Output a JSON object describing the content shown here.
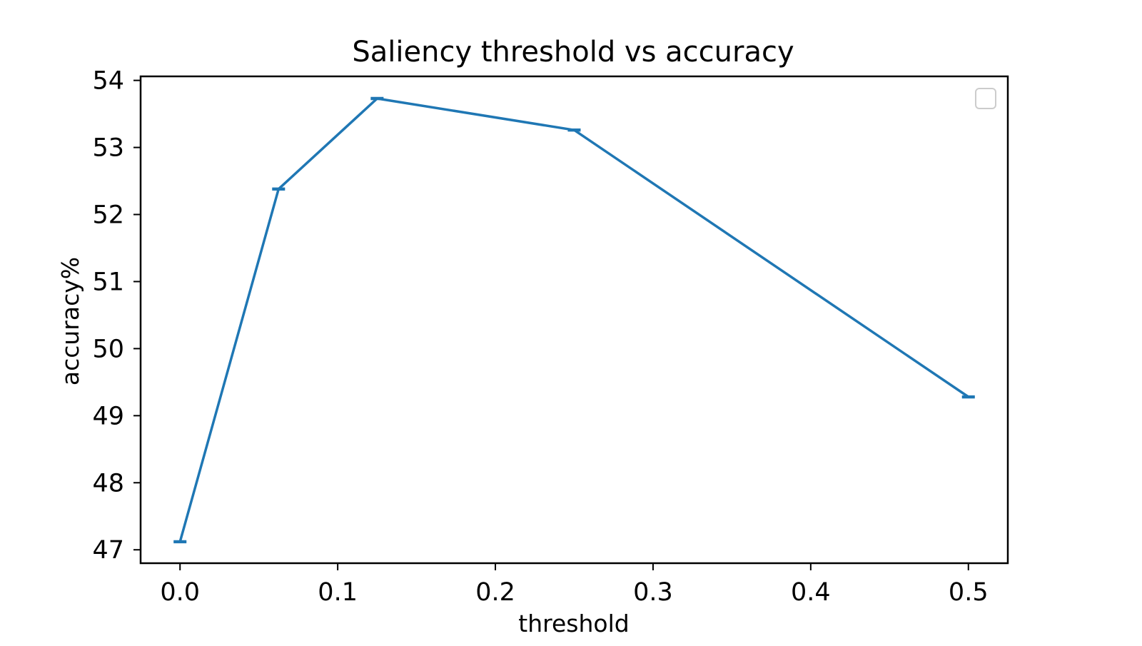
{
  "chart_data": {
    "type": "line",
    "title": "Saliency threshold vs accuracy",
    "xlabel": "threshold",
    "ylabel": "accuracy%",
    "x_ticks": [
      "0.0",
      "0.1",
      "0.2",
      "0.3",
      "0.4",
      "0.5"
    ],
    "y_ticks": [
      "47",
      "48",
      "49",
      "50",
      "51",
      "52",
      "53",
      "54"
    ],
    "xlim": [
      -0.025,
      0.525
    ],
    "ylim": [
      46.8,
      54.06
    ],
    "grid": false,
    "legend": "top-right (empty)",
    "series": [
      {
        "color": "#1f77b4",
        "x": [
          0.0,
          0.0625,
          0.125,
          0.25,
          0.5
        ],
        "y": [
          47.12,
          52.38,
          53.73,
          53.26,
          49.28
        ],
        "error": [
          0.01,
          0.01,
          0.01,
          0.01,
          0.01
        ]
      }
    ]
  }
}
